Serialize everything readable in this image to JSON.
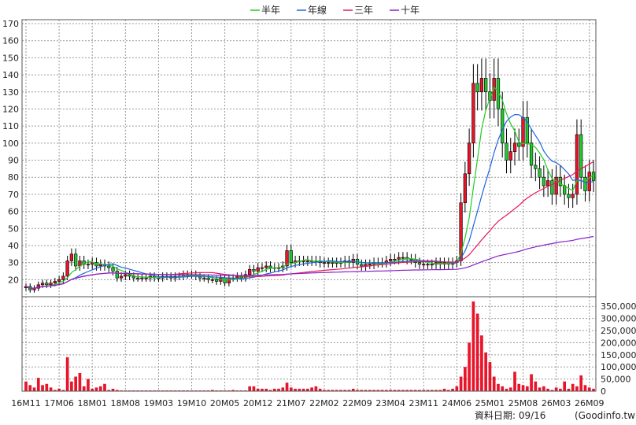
{
  "chart_data": {
    "type": "candlestick",
    "legend": [
      {
        "name": "半年",
        "color": "#22cc22"
      },
      {
        "name": "年線",
        "color": "#1e64e6"
      },
      {
        "name": "三年",
        "color": "#e6185a"
      },
      {
        "name": "十年",
        "color": "#8a22c8"
      }
    ],
    "price_axis": {
      "ylim": [
        10,
        170
      ],
      "ticks": [
        20,
        30,
        40,
        50,
        60,
        70,
        80,
        90,
        100,
        110,
        120,
        130,
        140,
        150,
        160,
        170
      ]
    },
    "volume_axis": {
      "ylim": [
        0,
        380000
      ],
      "ticks": [
        0,
        50000,
        100000,
        150000,
        200000,
        250000,
        300000,
        350000
      ],
      "tick_labels": [
        "0",
        "50,000",
        "100,000",
        "150,000",
        "200,000",
        "250,000",
        "300,000",
        "350,000"
      ]
    },
    "x_tick_labels": [
      {
        "i": 0,
        "label": "16M11"
      },
      {
        "i": 8,
        "label": "17M06"
      },
      {
        "i": 16,
        "label": "18M01"
      },
      {
        "i": 24,
        "label": "18M08"
      },
      {
        "i": 32,
        "label": "19M03"
      },
      {
        "i": 40,
        "label": "19M10"
      },
      {
        "i": 48,
        "label": "20M05"
      },
      {
        "i": 56,
        "label": "20M12"
      },
      {
        "i": 64,
        "label": "21M07"
      },
      {
        "i": 72,
        "label": "22M02"
      },
      {
        "i": 80,
        "label": "22M09"
      },
      {
        "i": 88,
        "label": "23M04"
      },
      {
        "i": 96,
        "label": "23M11"
      },
      {
        "i": 104,
        "label": "24M06"
      },
      {
        "i": 112,
        "label": "25M01"
      },
      {
        "i": 120,
        "label": "25M08"
      },
      {
        "i": 128,
        "label": "26M03"
      },
      {
        "i": 136,
        "label": "26M09"
      }
    ],
    "close": [
      16,
      14,
      15,
      17,
      18,
      17,
      18,
      19,
      20,
      22,
      31,
      35,
      28,
      31,
      29,
      29,
      30,
      28,
      29,
      28,
      27,
      25,
      21,
      22,
      23,
      22,
      21,
      21,
      21,
      21,
      22,
      21,
      21,
      22,
      22,
      21,
      22,
      22,
      23,
      23,
      23,
      22,
      21,
      21,
      20,
      20,
      19,
      21,
      18,
      21,
      21,
      22,
      21,
      23,
      26,
      25,
      27,
      27,
      28,
      27,
      27,
      27,
      28,
      37,
      30,
      31,
      31,
      31,
      31,
      31,
      31,
      30,
      30,
      30,
      30,
      30,
      30,
      31,
      30,
      32,
      29,
      28,
      29,
      29,
      30,
      30,
      30,
      31,
      32,
      32,
      33,
      33,
      32,
      32,
      30,
      29,
      29,
      29,
      29,
      30,
      29,
      30,
      29,
      30,
      31,
      65,
      82,
      100,
      135,
      130,
      138,
      130,
      125,
      138,
      120,
      100,
      90,
      95,
      100,
      98,
      115,
      100,
      87,
      85,
      80,
      75,
      78,
      70,
      80,
      75,
      70,
      68,
      70,
      105,
      80,
      72,
      83,
      78
    ],
    "volume": [
      40000,
      25000,
      15000,
      55000,
      25000,
      30000,
      15000,
      5000,
      10000,
      5000,
      140000,
      40000,
      60000,
      75000,
      20000,
      50000,
      10000,
      15000,
      20000,
      30000,
      5000,
      10000,
      5000,
      3000,
      3000,
      3000,
      3000,
      3000,
      3000,
      3000,
      3000,
      3000,
      3000,
      3000,
      3000,
      3000,
      3000,
      3000,
      3000,
      3000,
      3000,
      3000,
      3000,
      3000,
      3000,
      5000,
      3000,
      3000,
      3000,
      3000,
      5000,
      3000,
      3000,
      3000,
      20000,
      20000,
      10000,
      10000,
      10000,
      5000,
      10000,
      10000,
      15000,
      35000,
      15000,
      10000,
      10000,
      10000,
      10000,
      15000,
      20000,
      10000,
      5000,
      5000,
      5000,
      5000,
      5000,
      5000,
      5000,
      10000,
      5000,
      5000,
      5000,
      5000,
      5000,
      5000,
      5000,
      5000,
      5000,
      5000,
      5000,
      5000,
      5000,
      5000,
      5000,
      5000,
      5000,
      5000,
      5000,
      5000,
      5000,
      10000,
      5000,
      10000,
      20000,
      60000,
      100000,
      200000,
      370000,
      320000,
      230000,
      160000,
      120000,
      60000,
      30000,
      20000,
      10000,
      15000,
      80000,
      30000,
      25000,
      20000,
      70000,
      40000,
      15000,
      20000,
      10000,
      5000,
      15000,
      10000,
      40000,
      10000,
      30000,
      20000,
      65000,
      25000,
      15000,
      10000
    ],
    "date_label": "資料日期: 09/16",
    "source_label": "(Goodinfo.tw)"
  }
}
